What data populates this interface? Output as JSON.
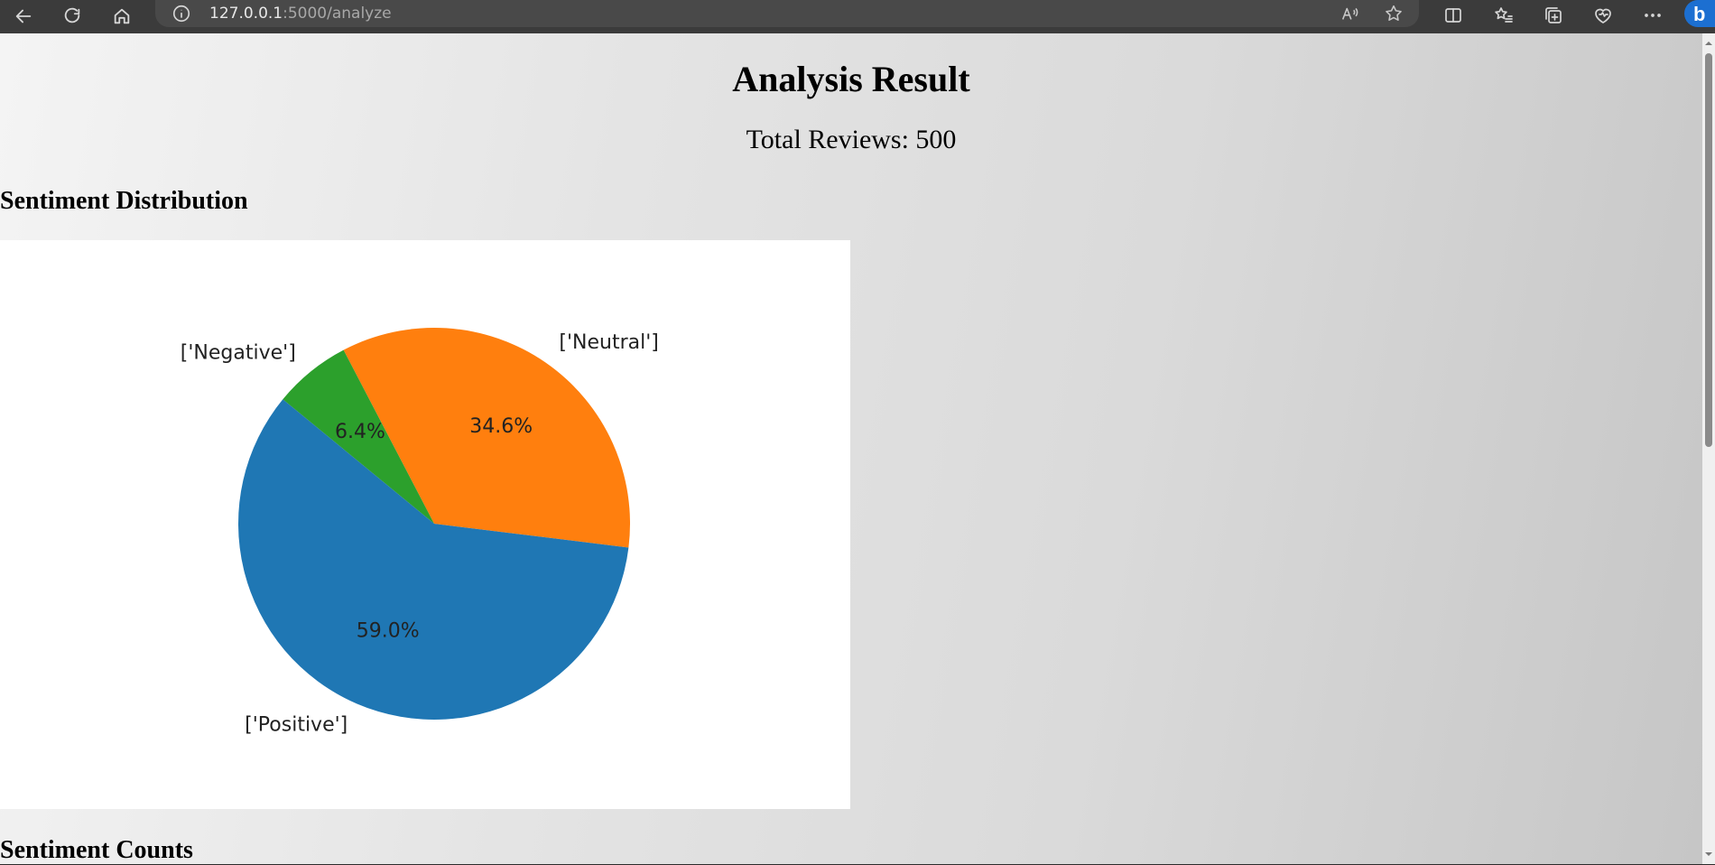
{
  "browser": {
    "url_host": "127.0.0.1",
    "url_rest": ":5000/analyze"
  },
  "page": {
    "title": "Analysis Result",
    "total_reviews": "Total Reviews: 500",
    "section_distribution": "Sentiment Distribution",
    "section_counts": "Sentiment Counts"
  },
  "chart_data": {
    "type": "pie",
    "slices": [
      {
        "label": "['Neutral']",
        "value": 34.6,
        "pct_label": "34.6%",
        "color": "#ff7f0e"
      },
      {
        "label": "['Negative']",
        "value": 6.4,
        "pct_label": "6.4%",
        "color": "#2ca02c"
      },
      {
        "label": "['Positive']",
        "value": 59.0,
        "pct_label": "59.0%",
        "color": "#1f77b4"
      }
    ]
  }
}
